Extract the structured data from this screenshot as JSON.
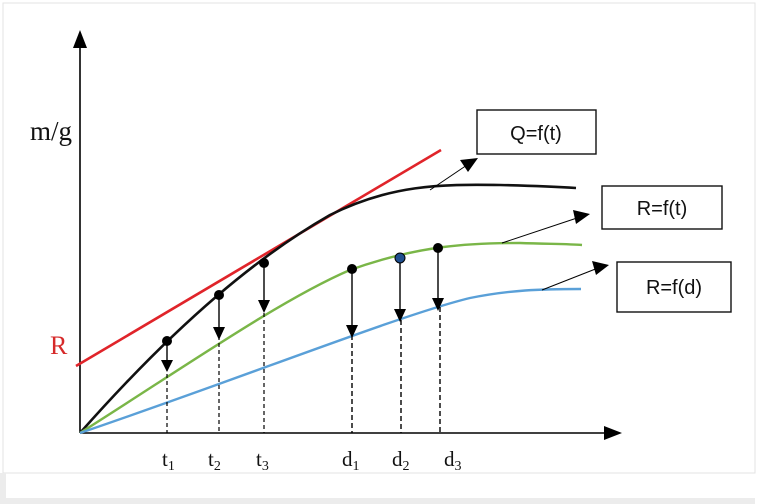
{
  "axes": {
    "y_label": "m/g",
    "intercept_label": "R"
  },
  "curves": {
    "q": {
      "label": "Q=f(t)",
      "color": "#111111"
    },
    "rt": {
      "label": "R=f(t)",
      "color": "#7ab648"
    },
    "rd": {
      "label": "R=f(d)",
      "color": "#5aa0d8"
    },
    "tangent": {
      "color": "#e0242a"
    }
  },
  "markers": [
    {
      "base": "t",
      "sub": "1"
    },
    {
      "base": "t",
      "sub": "2"
    },
    {
      "base": "t",
      "sub": "3"
    },
    {
      "base": "d",
      "sub": "1"
    },
    {
      "base": "d",
      "sub": "2"
    },
    {
      "base": "d",
      "sub": "3"
    }
  ]
}
